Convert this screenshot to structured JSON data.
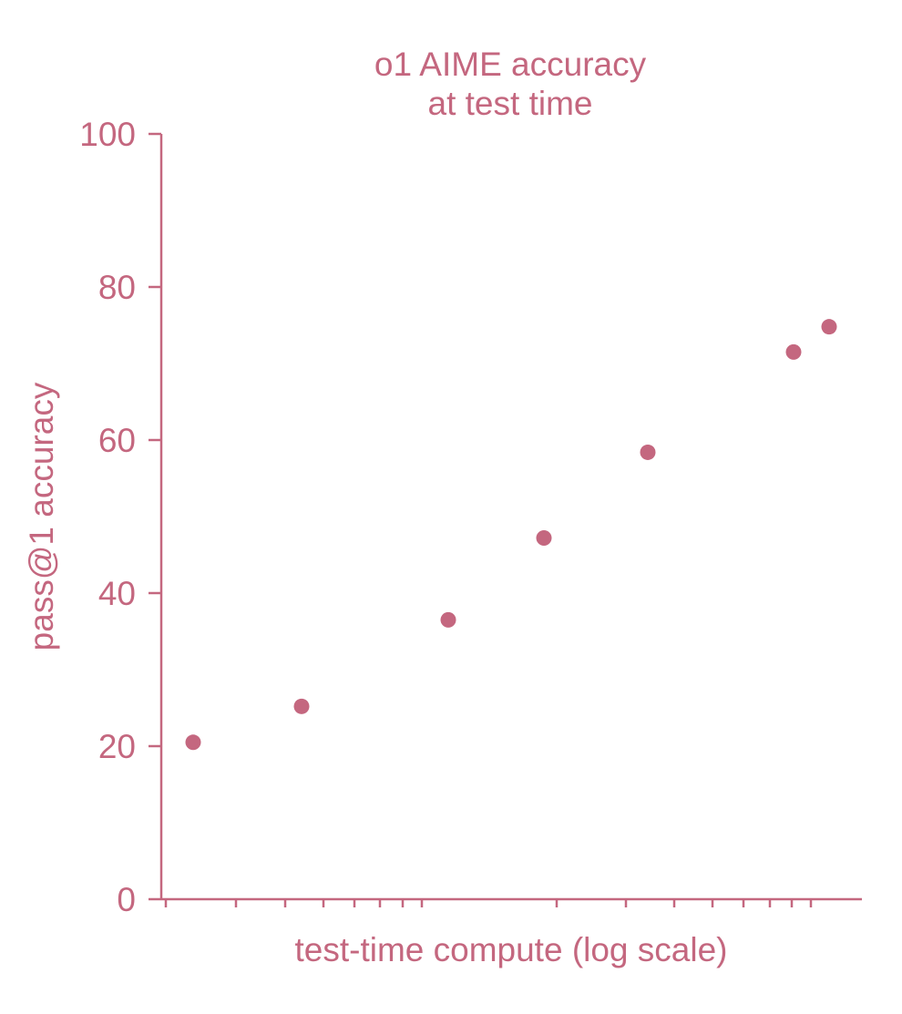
{
  "chart_data": {
    "type": "scatter",
    "title": [
      "o1 AIME accuracy",
      "at test time"
    ],
    "xlabel": "test-time compute (log scale)",
    "ylabel": "pass@1 accuracy",
    "xscale": "log",
    "x_tick_labels_shown": false,
    "ylim": [
      0,
      100
    ],
    "yticks": [
      0,
      20,
      40,
      60,
      80,
      100
    ],
    "ytick_labels": [
      "0",
      "20",
      "40",
      "60",
      "80",
      "100"
    ],
    "grid": false,
    "color": "#c4677f",
    "points_y": [
      20.5,
      25.2,
      36.5,
      47.2,
      58.4,
      71.5,
      74.8
    ]
  }
}
